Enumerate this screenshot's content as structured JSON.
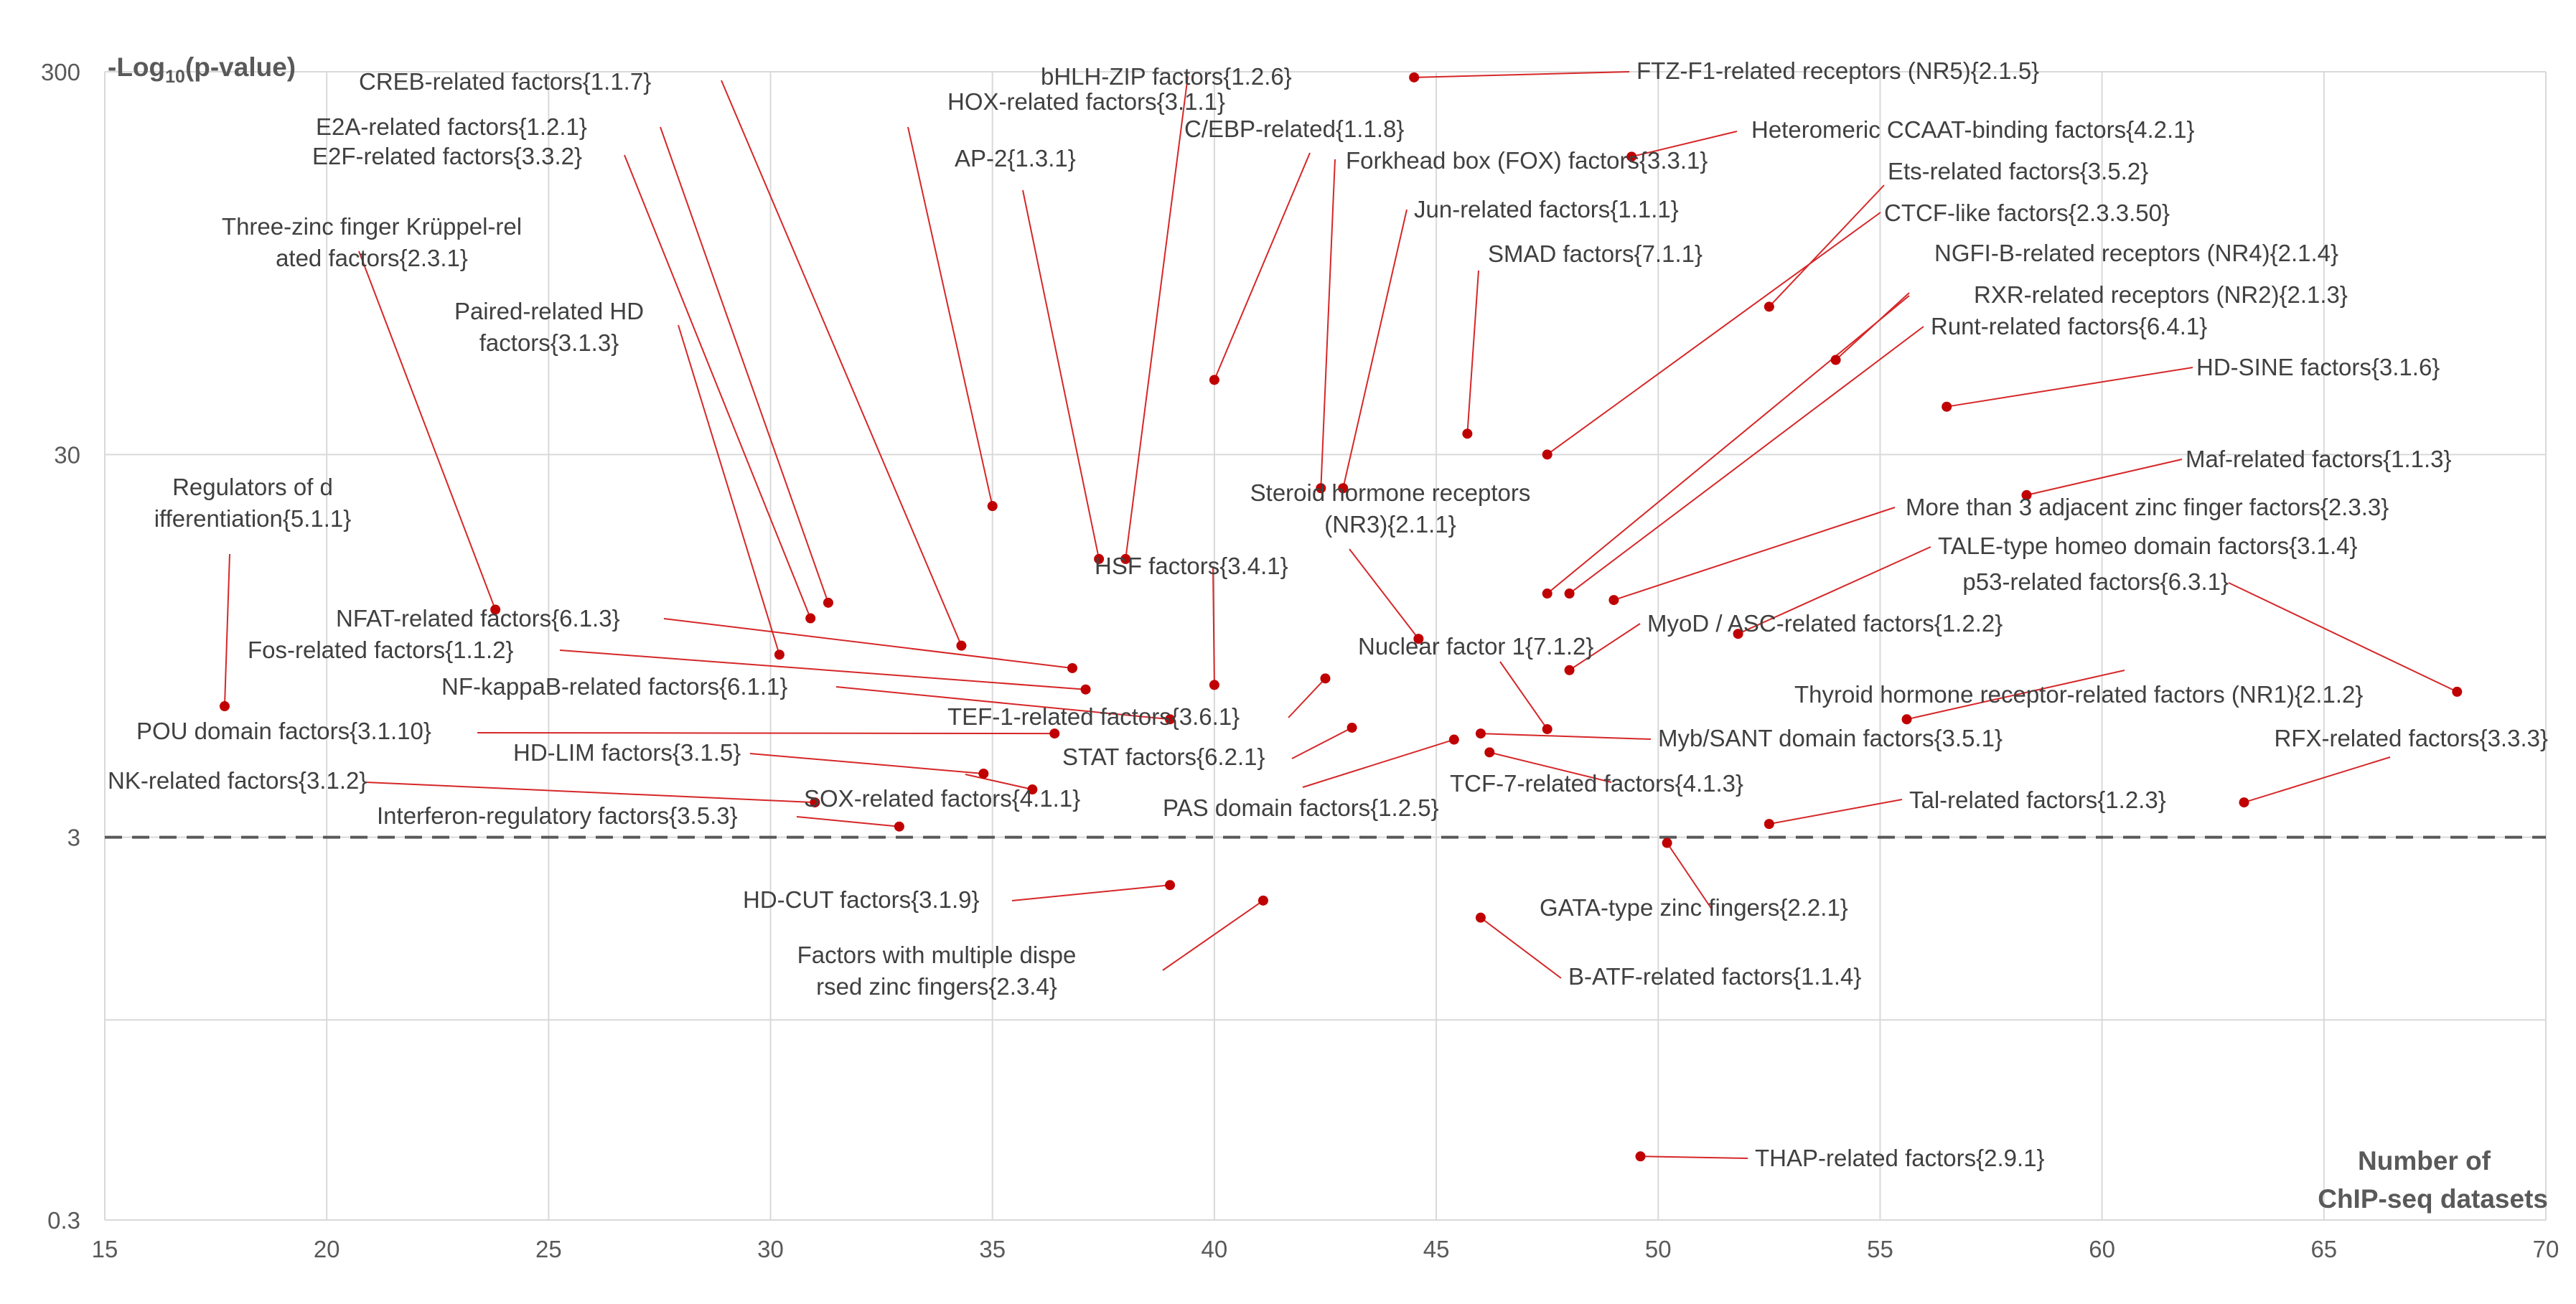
{
  "chart_data": {
    "type": "scatter",
    "title": "",
    "xlabel": "Number of ChIP-seq datasets",
    "ylabel": "-Log10(p-value)",
    "ylabel_parts": {
      "prefix": "-Log",
      "sub": "10",
      "suffix": "(p-value)"
    },
    "xlabel_lines": [
      "Number of",
      "ChIP-seq datasets"
    ],
    "xlim": [
      15,
      70
    ],
    "ylim": [
      0.3,
      300
    ],
    "yscale": "log",
    "x_ticks": [
      "15",
      "20",
      "25",
      "30",
      "35",
      "40",
      "45",
      "50",
      "55",
      "60",
      "65",
      "70"
    ],
    "y_ticks": [
      "0.3",
      "3",
      "30",
      "300"
    ],
    "y_tick_values": [
      0.3,
      3,
      30,
      300
    ],
    "grid": true,
    "threshold_line": {
      "y": 3,
      "style": "dashed"
    },
    "colors": {
      "point": "#c00000",
      "leader": "#d62728",
      "text": "#404040",
      "axis_text": "#595959",
      "grid": "#d9d9d9",
      "threshold": "#595959"
    },
    "points": [
      {
        "name": "FTZ-F1-related receptors (NR5){2.1.5}",
        "x": 44.5,
        "y": 290
      },
      {
        "name": "Heteromeric CCAAT-binding factors{4.2.1}",
        "x": 49.4,
        "y": 180
      },
      {
        "name": "SMAD factors{7.1.1}",
        "x": 45.7,
        "y": 34
      },
      {
        "name": "Ets-related factors{3.5.2}",
        "x": 52.5,
        "y": 73
      },
      {
        "name": "CTCF-like factors{2.3.3.50}",
        "x": 47.5,
        "y": 30
      },
      {
        "name": "NGFI-B-related receptors (NR4){2.1.4}",
        "x": 54,
        "y": 53
      },
      {
        "name": "RXR-related receptors (NR2){2.1.3}",
        "x": 47.5,
        "y": 13
      },
      {
        "name": "Runt-related factors{6.4.1}",
        "x": 48,
        "y": 13
      },
      {
        "name": "HD-SINE factors{3.1.6}",
        "x": 56.5,
        "y": 40
      },
      {
        "name": "Maf-related factors{1.1.3}",
        "x": 58.3,
        "y": 23.5
      },
      {
        "name": "More than 3 adjacent zinc finger factors{2.3.3}",
        "x": 49,
        "y": 12.5
      },
      {
        "name": "TALE-type homeo domain factors{3.1.4}",
        "x": 51.8,
        "y": 10.2
      },
      {
        "name": "p53-related factors{6.3.1}",
        "x": 68,
        "y": 7.2
      },
      {
        "name": "MyoD / ASC-related factors{1.2.2}",
        "x": 48,
        "y": 8.2
      },
      {
        "name": "Thyroid hormone receptor-related factors (NR1){2.1.2}",
        "x": 55.6,
        "y": 6.1
      },
      {
        "name": "Myb/SANT domain factors{3.5.1}",
        "x": 46,
        "y": 5.6
      },
      {
        "name": "TCF-7-related factors{4.1.3}",
        "x": 46.2,
        "y": 5.0
      },
      {
        "name": "RFX-related factors{3.3.3}",
        "x": 63.2,
        "y": 3.7
      },
      {
        "name": "Tal-related factors{1.2.3}",
        "x": 52.5,
        "y": 3.25
      },
      {
        "name": "GATA-type zinc fingers{2.2.1}",
        "x": 50.2,
        "y": 2.9
      },
      {
        "name": "B-ATF-related factors{1.1.4}",
        "x": 46,
        "y": 1.85
      },
      {
        "name": "THAP-related factors{2.9.1}",
        "x": 49.6,
        "y": 0.44
      },
      {
        "name": "CREB-related factors{1.1.7}",
        "x": 34.3,
        "y": 9.5
      },
      {
        "name": "E2A-related factors{1.2.1}",
        "x": 31.3,
        "y": 12.3
      },
      {
        "name": "E2F-related factors{3.3.2}",
        "x": 30.9,
        "y": 11.2
      },
      {
        "name": "Three-zinc finger Krüppel-related factors{2.3.1}",
        "x": 23.8,
        "y": 11.8
      },
      {
        "name": "Paired-related HD factors{3.1.3}",
        "x": 30.2,
        "y": 9
      },
      {
        "name": "HOX-related factors{3.1.1}",
        "x": 35,
        "y": 22
      },
      {
        "name": "bHLH-ZIP factors{1.2.6}",
        "x": 38,
        "y": 16
      },
      {
        "name": "AP-2{1.3.1}",
        "x": 37.4,
        "y": 16
      },
      {
        "name": "C/EBP-related{1.1.8}",
        "x": 40,
        "y": 47
      },
      {
        "name": "Forkhead box (FOX) factors{3.3.1}",
        "x": 42.4,
        "y": 24.5
      },
      {
        "name": "Jun-related factors{1.1.1}",
        "x": 42.9,
        "y": 24.5
      },
      {
        "name": "Steroid hormone receptors (NR3){2.1.1}",
        "x": 44.6,
        "y": 9.9
      },
      {
        "name": "HSF factors{3.4.1}",
        "x": 40,
        "y": 7.5
      },
      {
        "name": "Nuclear factor 1{7.1.2}",
        "x": 47.5,
        "y": 5.75
      },
      {
        "name": "TEF-1-related factors{3.6.1}",
        "x": 42.5,
        "y": 7.8
      },
      {
        "name": "STAT factors{6.2.1}",
        "x": 43.1,
        "y": 5.8
      },
      {
        "name": "PAS domain factors{1.2.5}",
        "x": 45.4,
        "y": 5.4
      },
      {
        "name": "Regulators of differentiation{5.1.1}",
        "x": 17.7,
        "y": 6.6
      },
      {
        "name": "NFAT-related factors{6.1.3}",
        "x": 36.8,
        "y": 8.3
      },
      {
        "name": "Fos-related factors{1.1.2}",
        "x": 37.1,
        "y": 7.3
      },
      {
        "name": "NF-kappaB-related factors{6.1.1}",
        "x": 39,
        "y": 6.1
      },
      {
        "name": "POU domain factors{3.1.10}",
        "x": 36.4,
        "y": 5.6
      },
      {
        "name": "HD-LIM factors{3.1.5}",
        "x": 34.8,
        "y": 4.4
      },
      {
        "name": "NK-related factors{3.1.2}",
        "x": 31,
        "y": 3.7
      },
      {
        "name": "SOX-related factors{4.1.1}",
        "x": 35.9,
        "y": 4.0
      },
      {
        "name": "Interferon-regulatory factors{3.5.3}",
        "x": 32.9,
        "y": 3.2
      },
      {
        "name": "HD-CUT factors{3.1.9}",
        "x": 39,
        "y": 2.25
      },
      {
        "name": "Factors with multiple dispersed zinc fingers{2.3.4}",
        "x": 41.1,
        "y": 2.05
      }
    ]
  }
}
